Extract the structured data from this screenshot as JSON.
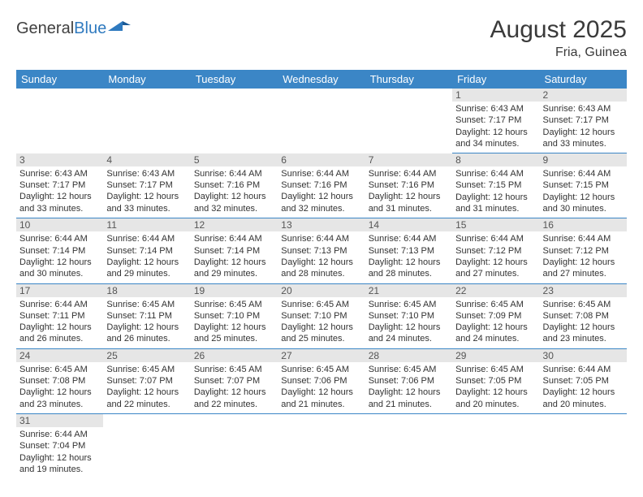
{
  "logo": {
    "text_a": "General",
    "text_b": "Blue"
  },
  "title": "August 2025",
  "location": "Fria, Guinea",
  "day_headers": [
    "Sunday",
    "Monday",
    "Tuesday",
    "Wednesday",
    "Thursday",
    "Friday",
    "Saturday"
  ],
  "colors": {
    "header_bg": "#3b86c6",
    "header_text": "#ffffff",
    "daynum_bg": "#e6e6e6",
    "cell_border": "#3b86c6",
    "logo_blue": "#2f7abf"
  },
  "weeks": [
    [
      null,
      null,
      null,
      null,
      null,
      {
        "n": "1",
        "sr": "6:43 AM",
        "ss": "7:17 PM",
        "dl": "12 hours and 34 minutes."
      },
      {
        "n": "2",
        "sr": "6:43 AM",
        "ss": "7:17 PM",
        "dl": "12 hours and 33 minutes."
      }
    ],
    [
      {
        "n": "3",
        "sr": "6:43 AM",
        "ss": "7:17 PM",
        "dl": "12 hours and 33 minutes."
      },
      {
        "n": "4",
        "sr": "6:43 AM",
        "ss": "7:17 PM",
        "dl": "12 hours and 33 minutes."
      },
      {
        "n": "5",
        "sr": "6:44 AM",
        "ss": "7:16 PM",
        "dl": "12 hours and 32 minutes."
      },
      {
        "n": "6",
        "sr": "6:44 AM",
        "ss": "7:16 PM",
        "dl": "12 hours and 32 minutes."
      },
      {
        "n": "7",
        "sr": "6:44 AM",
        "ss": "7:16 PM",
        "dl": "12 hours and 31 minutes."
      },
      {
        "n": "8",
        "sr": "6:44 AM",
        "ss": "7:15 PM",
        "dl": "12 hours and 31 minutes."
      },
      {
        "n": "9",
        "sr": "6:44 AM",
        "ss": "7:15 PM",
        "dl": "12 hours and 30 minutes."
      }
    ],
    [
      {
        "n": "10",
        "sr": "6:44 AM",
        "ss": "7:14 PM",
        "dl": "12 hours and 30 minutes."
      },
      {
        "n": "11",
        "sr": "6:44 AM",
        "ss": "7:14 PM",
        "dl": "12 hours and 29 minutes."
      },
      {
        "n": "12",
        "sr": "6:44 AM",
        "ss": "7:14 PM",
        "dl": "12 hours and 29 minutes."
      },
      {
        "n": "13",
        "sr": "6:44 AM",
        "ss": "7:13 PM",
        "dl": "12 hours and 28 minutes."
      },
      {
        "n": "14",
        "sr": "6:44 AM",
        "ss": "7:13 PM",
        "dl": "12 hours and 28 minutes."
      },
      {
        "n": "15",
        "sr": "6:44 AM",
        "ss": "7:12 PM",
        "dl": "12 hours and 27 minutes."
      },
      {
        "n": "16",
        "sr": "6:44 AM",
        "ss": "7:12 PM",
        "dl": "12 hours and 27 minutes."
      }
    ],
    [
      {
        "n": "17",
        "sr": "6:44 AM",
        "ss": "7:11 PM",
        "dl": "12 hours and 26 minutes."
      },
      {
        "n": "18",
        "sr": "6:45 AM",
        "ss": "7:11 PM",
        "dl": "12 hours and 26 minutes."
      },
      {
        "n": "19",
        "sr": "6:45 AM",
        "ss": "7:10 PM",
        "dl": "12 hours and 25 minutes."
      },
      {
        "n": "20",
        "sr": "6:45 AM",
        "ss": "7:10 PM",
        "dl": "12 hours and 25 minutes."
      },
      {
        "n": "21",
        "sr": "6:45 AM",
        "ss": "7:10 PM",
        "dl": "12 hours and 24 minutes."
      },
      {
        "n": "22",
        "sr": "6:45 AM",
        "ss": "7:09 PM",
        "dl": "12 hours and 24 minutes."
      },
      {
        "n": "23",
        "sr": "6:45 AM",
        "ss": "7:08 PM",
        "dl": "12 hours and 23 minutes."
      }
    ],
    [
      {
        "n": "24",
        "sr": "6:45 AM",
        "ss": "7:08 PM",
        "dl": "12 hours and 23 minutes."
      },
      {
        "n": "25",
        "sr": "6:45 AM",
        "ss": "7:07 PM",
        "dl": "12 hours and 22 minutes."
      },
      {
        "n": "26",
        "sr": "6:45 AM",
        "ss": "7:07 PM",
        "dl": "12 hours and 22 minutes."
      },
      {
        "n": "27",
        "sr": "6:45 AM",
        "ss": "7:06 PM",
        "dl": "12 hours and 21 minutes."
      },
      {
        "n": "28",
        "sr": "6:45 AM",
        "ss": "7:06 PM",
        "dl": "12 hours and 21 minutes."
      },
      {
        "n": "29",
        "sr": "6:45 AM",
        "ss": "7:05 PM",
        "dl": "12 hours and 20 minutes."
      },
      {
        "n": "30",
        "sr": "6:44 AM",
        "ss": "7:05 PM",
        "dl": "12 hours and 20 minutes."
      }
    ],
    [
      {
        "n": "31",
        "sr": "6:44 AM",
        "ss": "7:04 PM",
        "dl": "12 hours and 19 minutes."
      },
      null,
      null,
      null,
      null,
      null,
      null
    ]
  ],
  "labels": {
    "sunrise": "Sunrise:",
    "sunset": "Sunset:",
    "daylight": "Daylight:"
  }
}
